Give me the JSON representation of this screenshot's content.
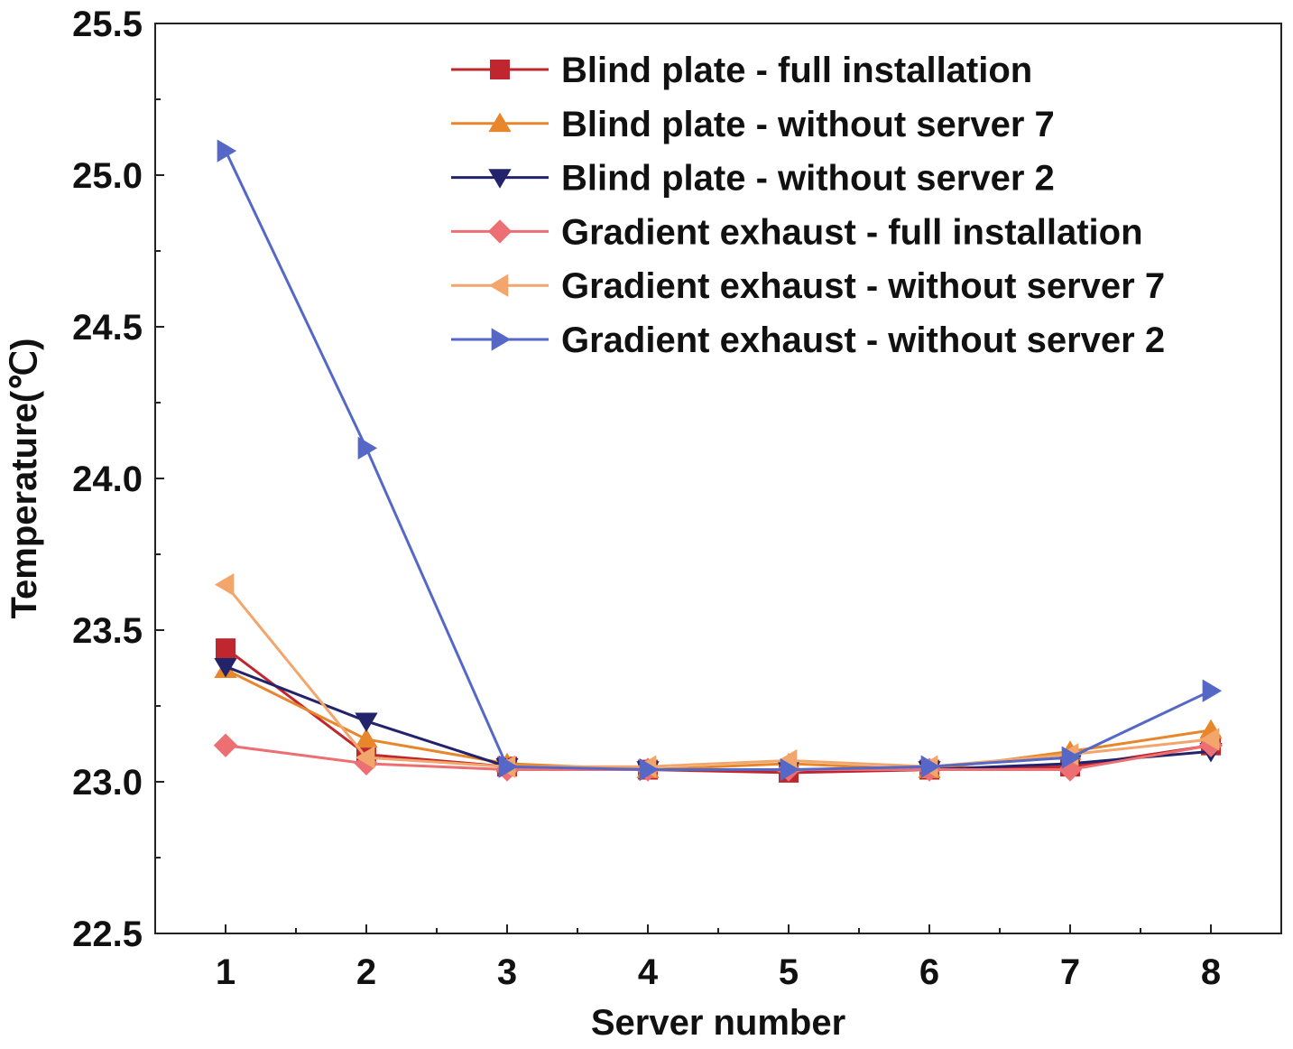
{
  "chart_data": {
    "type": "line",
    "title": "",
    "xlabel": "Server number",
    "ylabel": "Temperature(℃)",
    "x": [
      1,
      2,
      3,
      4,
      5,
      6,
      7,
      8
    ],
    "xlim": [
      0.5,
      8.5
    ],
    "ylim": [
      22.5,
      25.5
    ],
    "yticks": [
      22.5,
      23.0,
      23.5,
      24.0,
      24.5,
      25.0,
      25.5
    ],
    "ytick_labels": [
      "22.5",
      "23.0",
      "23.5",
      "24.0",
      "24.5",
      "25.0",
      "25.5"
    ],
    "xtick_labels": [
      "1",
      "2",
      "3",
      "4",
      "5",
      "6",
      "7",
      "8"
    ],
    "grid": false,
    "legend_position": "top-right",
    "series": [
      {
        "name": "Blind plate - full installation",
        "color": "#c0262d",
        "marker": "square",
        "values": [
          23.44,
          23.09,
          23.05,
          23.04,
          23.03,
          23.04,
          23.05,
          23.12
        ]
      },
      {
        "name": "Blind plate - without server 7",
        "color": "#e8862b",
        "marker": "triangle-up",
        "values": [
          23.37,
          23.14,
          23.06,
          23.04,
          23.06,
          23.04,
          23.1,
          23.17
        ]
      },
      {
        "name": "Blind plate - without server 2",
        "color": "#22236b",
        "marker": "triangle-down",
        "values": [
          23.38,
          23.2,
          23.05,
          23.04,
          23.04,
          23.04,
          23.06,
          23.1
        ]
      },
      {
        "name": "Gradient exhaust - full installation",
        "color": "#ec6f73",
        "marker": "diamond",
        "values": [
          23.12,
          23.06,
          23.04,
          23.04,
          23.04,
          23.04,
          23.04,
          23.12
        ]
      },
      {
        "name": "Gradient exhaust - without server 7",
        "color": "#f2a66b",
        "marker": "triangle-left",
        "values": [
          23.65,
          23.08,
          23.05,
          23.05,
          23.07,
          23.05,
          23.09,
          23.14
        ]
      },
      {
        "name": "Gradient exhaust - without server 2",
        "color": "#5568c8",
        "marker": "triangle-right",
        "values": [
          25.08,
          24.1,
          23.05,
          23.04,
          23.04,
          23.05,
          23.08,
          23.3
        ]
      }
    ]
  }
}
